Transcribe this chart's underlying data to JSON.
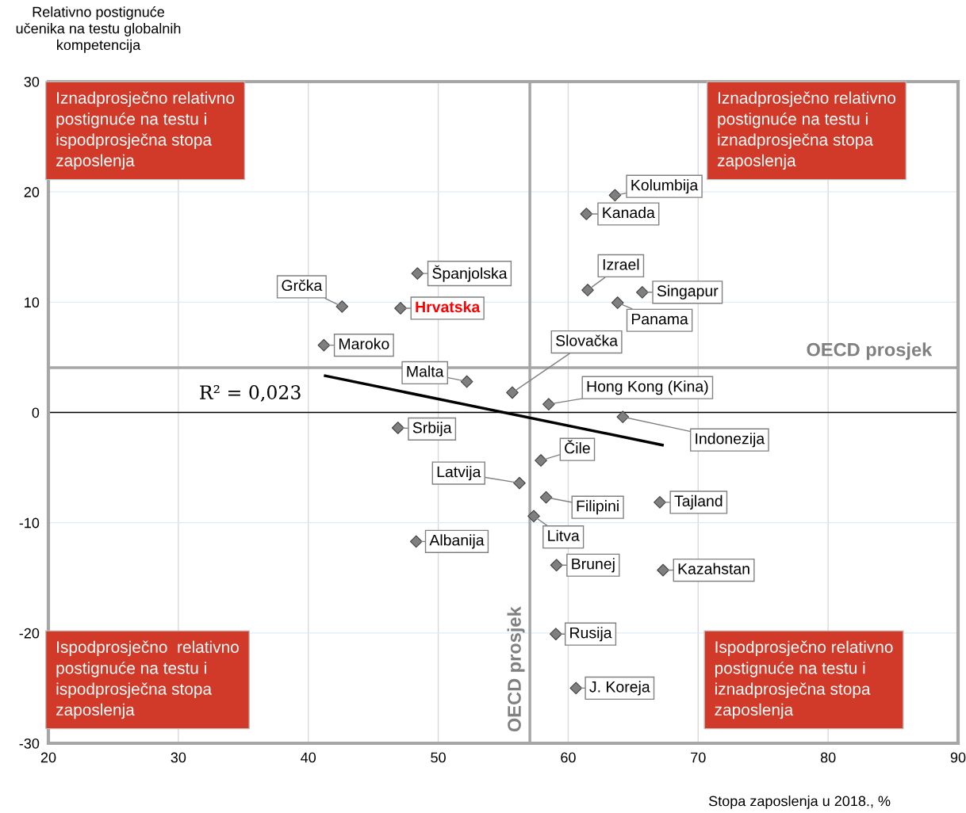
{
  "chart_data": {
    "type": "scatter",
    "xlabel": "Stopa zaposlenja u 2018., %",
    "ylabel": "Relativno postignuće\nučenika na testu globalnih\nkompetencija",
    "xlim": [
      20,
      90
    ],
    "xticks": [
      20,
      30,
      40,
      50,
      60,
      70,
      80,
      90
    ],
    "ylim": [
      -30,
      30
    ],
    "yticks": [
      -30,
      -20,
      -10,
      0,
      10,
      20,
      30
    ],
    "grid": true,
    "marker": "diamond",
    "series": [
      {
        "color": "#7f7f7f",
        "x": [
          63.6,
          61.4,
          48.4,
          42.6,
          47.1,
          61.5,
          65.7,
          63.8,
          41.2,
          52.2,
          55.7,
          58.5,
          64.2,
          46.9,
          57.9,
          56.25,
          58.3,
          67.05,
          57.35,
          48.3,
          59.1,
          67.3,
          59.05,
          60.6
        ],
        "values": [
          19.7,
          18.0,
          12.6,
          9.6,
          9.45,
          11.1,
          10.9,
          9.95,
          6.1,
          2.8,
          1.8,
          0.75,
          -0.4,
          -1.4,
          -4.35,
          -6.4,
          -7.7,
          -8.15,
          -9.4,
          -11.7,
          -13.85,
          -14.3,
          -20.1,
          -25.0
        ]
      },
      {
        "type": "line",
        "color": "#000000",
        "x": [
          41.2,
          67.35
        ],
        "values": [
          3.35,
          -2.98
        ],
        "marker": "none",
        "line_style": "solid"
      }
    ],
    "ref_lines": [
      {
        "axis": "x",
        "value": 57.05,
        "label": "OECD prosjek",
        "color": "#a6a6a6"
      },
      {
        "axis": "y",
        "value": 4.06,
        "label": "OECD prosjek",
        "color": "#a6a6a6"
      },
      {
        "axis": "y",
        "value": 0,
        "label": null,
        "color": "#000000"
      }
    ],
    "annotations": [
      {
        "text": "Kolumbija",
        "x": 63.6,
        "y": 19.7
      },
      {
        "text": "Kanada",
        "x": 61.4,
        "y": 18.0
      },
      {
        "text": "Španjolska",
        "x": 48.4,
        "y": 12.6
      },
      {
        "text": "Grčka",
        "x": 42.6,
        "y": 9.6
      },
      {
        "text": "Hrvatska",
        "x": 47.1,
        "y": 9.45
      },
      {
        "text": "Izrael",
        "x": 61.5,
        "y": 11.1
      },
      {
        "text": "Singapur",
        "x": 65.7,
        "y": 10.9
      },
      {
        "text": "Panama",
        "x": 63.8,
        "y": 9.95
      },
      {
        "text": "Maroko",
        "x": 41.2,
        "y": 6.1
      },
      {
        "text": "Malta",
        "x": 52.2,
        "y": 2.8
      },
      {
        "text": "Slovačka",
        "x": 55.7,
        "y": 1.8
      },
      {
        "text": "Hong Kong (Kina)",
        "x": 58.5,
        "y": 0.75
      },
      {
        "text": "Indonezija",
        "x": 64.2,
        "y": -0.4
      },
      {
        "text": "Srbija",
        "x": 46.9,
        "y": -1.4
      },
      {
        "text": "Čile",
        "x": 57.9,
        "y": -4.35
      },
      {
        "text": "Latvija",
        "x": 56.25,
        "y": -6.4
      },
      {
        "text": "Filipini",
        "x": 58.3,
        "y": -7.7
      },
      {
        "text": "Tajland",
        "x": 67.05,
        "y": -8.15
      },
      {
        "text": "Litva",
        "x": 57.35,
        "y": -9.4
      },
      {
        "text": "Albanija",
        "x": 48.3,
        "y": -11.7
      },
      {
        "text": "Brunej",
        "x": 59.1,
        "y": -13.85
      },
      {
        "text": "Kazahstan",
        "x": 67.3,
        "y": -14.3
      },
      {
        "text": "Rusija",
        "x": 59.05,
        "y": -20.1
      },
      {
        "text": "J. Koreja",
        "x": 60.6,
        "y": -25.0
      },
      "Iznadprosječno relativno\npostignuće na testu i\nispodprosječna stopa\nzaposlenja",
      "Iznadprosječno relativno\npostignuće na testu i\niznadprosječna stopa\nzaposlenja",
      "Ispodprosječno  relativno\npostignuće na testu i\nispodprosječna stopa\nzaposlenja",
      "Ispodprosječno relativno\npostignuće na testu i\niznadprosječna stopa\nzaposlenja",
      "R² = 0,023"
    ]
  }
}
